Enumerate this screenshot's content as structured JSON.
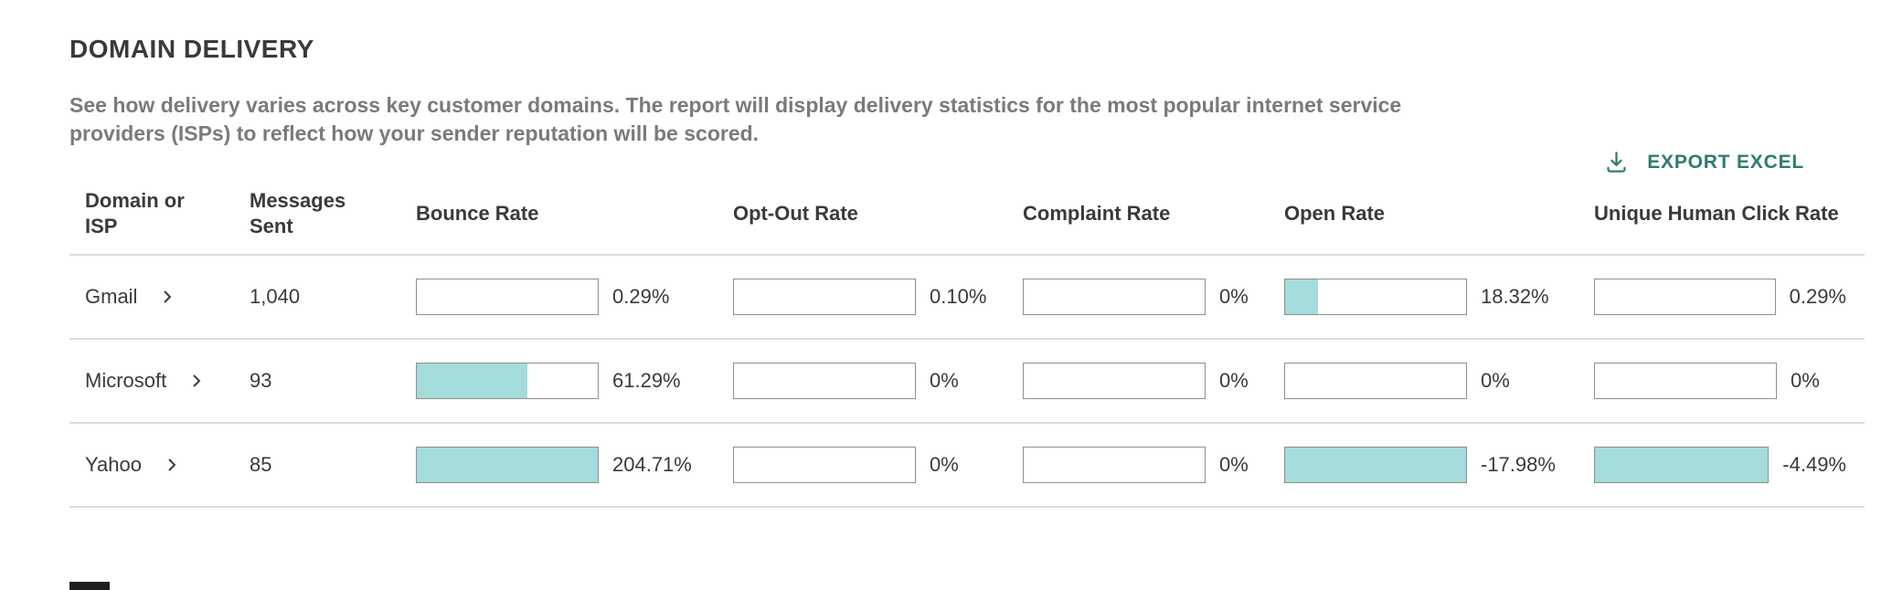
{
  "page": {
    "title": "DOMAIN DELIVERY",
    "description": "See how delivery varies across key customer domains. The report will display delivery statistics for the most popular internet service providers (ISPs) to reflect how your sender reputation will be scored.",
    "export_label": "EXPORT EXCEL"
  },
  "colors": {
    "accent_teal": "#2e7d6e",
    "bar_fill_teal": "#a3dcda",
    "bar_border_gray": "#8f8f8f",
    "text_dark": "#3a3a3a",
    "text_gray": "#7a7a7a",
    "divider_gray": "#dcdcdc"
  },
  "table": {
    "columns": [
      "Domain or ISP",
      "Messages Sent",
      "Bounce Rate",
      "Opt-Out Rate",
      "Complaint Rate",
      "Open Rate",
      "Unique Human Click Rate"
    ],
    "rows": [
      {
        "domain": "Gmail",
        "messages_sent": "1,040",
        "bounce": {
          "label": "0.29%",
          "fill": 0
        },
        "opt_out": {
          "label": "0.10%",
          "fill": 0
        },
        "complaint": {
          "label": "0%",
          "fill": 0
        },
        "open": {
          "label": "18.32%",
          "fill": 18
        },
        "click": {
          "label": "0.29%",
          "fill": 0
        }
      },
      {
        "domain": "Microsoft",
        "messages_sent": "93",
        "bounce": {
          "label": "61.29%",
          "fill": 61
        },
        "opt_out": {
          "label": "0%",
          "fill": 0
        },
        "complaint": {
          "label": "0%",
          "fill": 0
        },
        "open": {
          "label": "0%",
          "fill": 0
        },
        "click": {
          "label": "0%",
          "fill": 0
        }
      },
      {
        "domain": "Yahoo",
        "messages_sent": "85",
        "bounce": {
          "label": "204.71%",
          "fill": 100
        },
        "opt_out": {
          "label": "0%",
          "fill": 0
        },
        "complaint": {
          "label": "0%",
          "fill": 0
        },
        "open": {
          "label": "-17.98%",
          "fill": 100
        },
        "click": {
          "label": "-4.49%",
          "fill": 100
        }
      }
    ]
  },
  "chart_data": {
    "type": "table",
    "title": "Domain Delivery",
    "categories": [
      "Gmail",
      "Microsoft",
      "Yahoo"
    ],
    "series": [
      {
        "name": "Messages Sent",
        "values": [
          1040,
          93,
          85
        ]
      },
      {
        "name": "Bounce Rate %",
        "values": [
          0.29,
          61.29,
          204.71
        ]
      },
      {
        "name": "Opt-Out Rate %",
        "values": [
          0.1,
          0,
          0
        ]
      },
      {
        "name": "Complaint Rate %",
        "values": [
          0,
          0,
          0
        ]
      },
      {
        "name": "Open Rate %",
        "values": [
          18.32,
          0,
          -17.98
        ]
      },
      {
        "name": "Unique Human Click Rate %",
        "values": [
          0.29,
          0,
          -4.49
        ]
      }
    ]
  }
}
